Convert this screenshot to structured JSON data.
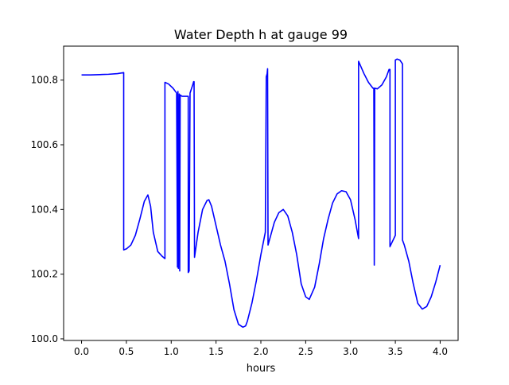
{
  "chart_data": {
    "type": "line",
    "title": "Water Depth h at gauge 99",
    "xlabel": "hours",
    "ylabel": "",
    "xlim": [
      -0.2,
      4.2
    ],
    "ylim": [
      99.995,
      100.905
    ],
    "xticks": [
      0.0,
      0.5,
      1.0,
      1.5,
      2.0,
      2.5,
      3.0,
      3.5,
      4.0
    ],
    "xtick_labels": [
      "0.0",
      "0.5",
      "1.0",
      "1.5",
      "2.0",
      "2.5",
      "3.0",
      "3.5",
      "4.0"
    ],
    "yticks": [
      100.0,
      100.2,
      100.4,
      100.6,
      100.8
    ],
    "ytick_labels": [
      "100.0",
      "100.2",
      "100.4",
      "100.6",
      "100.8"
    ],
    "grid": false,
    "legend": "none",
    "series": [
      {
        "color": "#0000ff",
        "x": [
          0.0,
          0.1,
          0.2,
          0.3,
          0.4,
          0.47,
          0.47,
          0.5,
          0.55,
          0.6,
          0.65,
          0.7,
          0.74,
          0.77,
          0.8,
          0.85,
          0.9,
          0.93,
          0.93,
          0.97,
          1.02,
          1.06,
          1.07,
          1.075,
          1.08,
          1.09,
          1.095,
          1.1,
          1.11,
          1.12,
          1.14,
          1.17,
          1.19,
          1.19,
          1.2,
          1.21,
          1.24,
          1.25,
          1.255,
          1.26,
          1.3,
          1.35,
          1.4,
          1.42,
          1.45,
          1.5,
          1.55,
          1.6,
          1.65,
          1.7,
          1.75,
          1.8,
          1.83,
          1.85,
          1.9,
          1.95,
          2.0,
          2.05,
          2.06,
          2.06,
          2.07,
          2.075,
          2.08,
          2.12,
          2.15,
          2.2,
          2.25,
          2.3,
          2.35,
          2.4,
          2.45,
          2.5,
          2.54,
          2.6,
          2.65,
          2.7,
          2.75,
          2.8,
          2.85,
          2.9,
          2.95,
          3.0,
          3.05,
          3.09,
          3.09,
          3.15,
          3.2,
          3.25,
          3.26,
          3.265,
          3.27,
          3.3,
          3.35,
          3.4,
          3.43,
          3.44,
          3.44,
          3.5,
          3.5,
          3.52,
          3.55,
          3.58,
          3.58,
          3.6,
          3.65,
          3.7,
          3.75,
          3.8,
          3.85,
          3.9,
          3.95,
          4.0
        ],
        "y": [
          100.816,
          100.816,
          100.817,
          100.818,
          100.82,
          100.823,
          100.275,
          100.278,
          100.29,
          100.32,
          100.37,
          100.425,
          100.445,
          100.41,
          100.33,
          100.27,
          100.255,
          100.248,
          100.793,
          100.788,
          100.775,
          100.76,
          100.222,
          100.765,
          100.218,
          100.757,
          100.21,
          100.754,
          100.752,
          100.75,
          100.75,
          100.75,
          100.75,
          100.205,
          100.21,
          100.76,
          100.785,
          100.795,
          100.795,
          100.252,
          100.33,
          100.4,
          100.428,
          100.43,
          100.41,
          100.35,
          100.29,
          100.24,
          100.17,
          100.09,
          100.045,
          100.036,
          100.04,
          100.055,
          100.11,
          100.18,
          100.26,
          100.33,
          100.8,
          100.81,
          100.82,
          100.835,
          100.29,
          100.33,
          100.36,
          100.39,
          100.4,
          100.38,
          100.33,
          100.26,
          100.17,
          100.13,
          100.122,
          100.16,
          100.23,
          100.31,
          100.37,
          100.42,
          100.448,
          100.458,
          100.455,
          100.43,
          100.37,
          100.31,
          100.858,
          100.82,
          100.793,
          100.775,
          100.775,
          100.228,
          100.775,
          100.773,
          100.785,
          100.81,
          100.833,
          100.833,
          100.285,
          100.32,
          100.862,
          100.865,
          100.862,
          100.85,
          100.305,
          100.29,
          100.24,
          100.17,
          100.11,
          100.092,
          100.1,
          100.13,
          100.175,
          100.228
        ]
      }
    ]
  }
}
